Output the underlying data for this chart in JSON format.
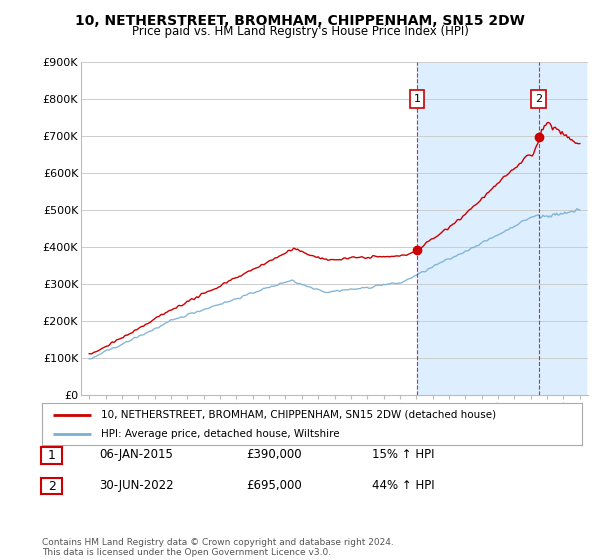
{
  "title": "10, NETHERSTREET, BROMHAM, CHIPPENHAM, SN15 2DW",
  "subtitle": "Price paid vs. HM Land Registry's House Price Index (HPI)",
  "ylim": [
    0,
    900000
  ],
  "yticks": [
    0,
    100000,
    200000,
    300000,
    400000,
    500000,
    600000,
    700000,
    800000,
    900000
  ],
  "ytick_labels": [
    "£0",
    "£100K",
    "£200K",
    "£300K",
    "£400K",
    "£500K",
    "£600K",
    "£700K",
    "£800K",
    "£900K"
  ],
  "sale1_year": 2015.04,
  "sale1_price": 390000,
  "sale2_year": 2022.5,
  "sale2_price": 695000,
  "red_color": "#cc0000",
  "blue_color": "#7ab0d4",
  "shade_color": "#ddeeff",
  "grid_color": "#cccccc",
  "legend_label_red": "10, NETHERSTREET, BROMHAM, CHIPPENHAM, SN15 2DW (detached house)",
  "legend_label_blue": "HPI: Average price, detached house, Wiltshire",
  "table_row1": [
    "1",
    "06-JAN-2015",
    "£390,000",
    "15% ↑ HPI"
  ],
  "table_row2": [
    "2",
    "30-JUN-2022",
    "£695,000",
    "44% ↑ HPI"
  ],
  "footnote": "Contains HM Land Registry data © Crown copyright and database right 2024.\nThis data is licensed under the Open Government Licence v3.0.",
  "bg_color": "#ffffff",
  "title_fontsize": 10,
  "subtitle_fontsize": 8.5,
  "xtick_start": 1995,
  "xtick_end": 2025
}
